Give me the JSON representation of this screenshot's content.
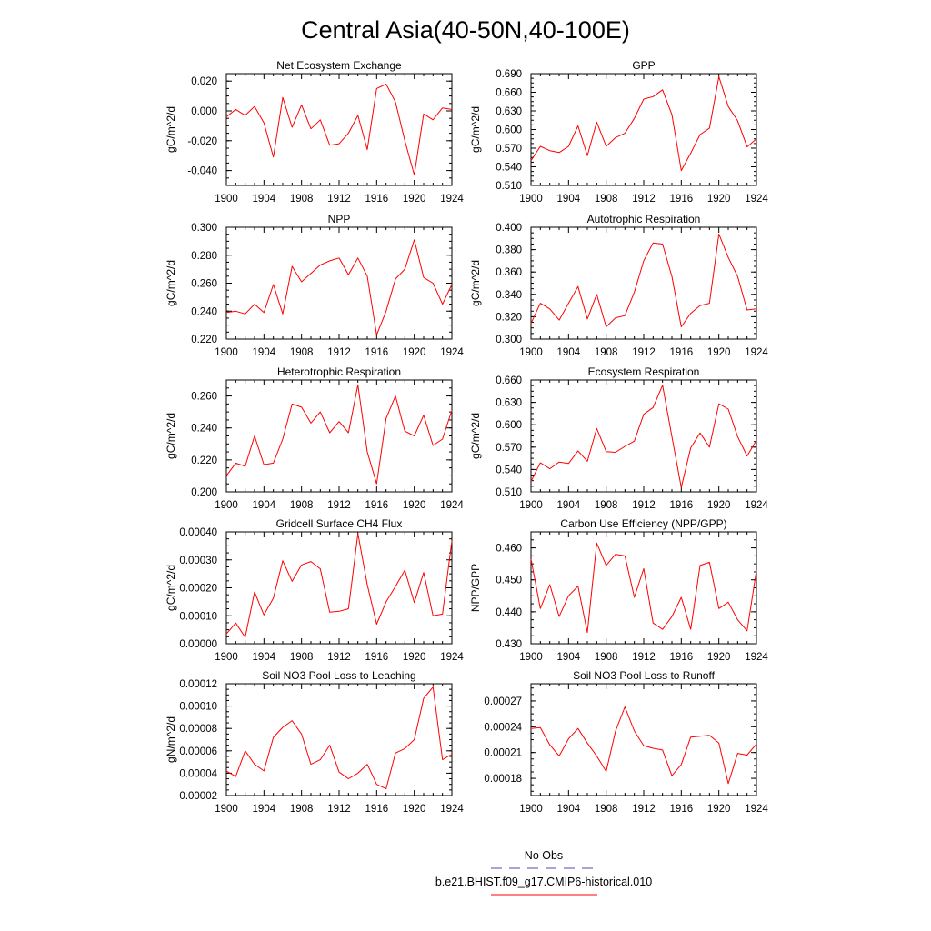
{
  "title": "Central Asia(40-50N,40-100E)",
  "colors": {
    "model": "#ff0000",
    "obs": "#4b4bb4",
    "axis": "#000000"
  },
  "legend": {
    "entries": [
      {
        "label": "No Obs",
        "style": "dashed",
        "color": "#4b4bb4"
      },
      {
        "label": "b.e21.BHIST.f09_g17.CMIP6-historical.010",
        "style": "solid",
        "color": "#ff0000"
      }
    ]
  },
  "chart_data": [
    {
      "type": "line",
      "title": "Net Ecosystem Exchange",
      "ylabel": "gC/m^2/d",
      "xlim": [
        1900,
        1924
      ],
      "ylim": [
        -0.05,
        0.025
      ],
      "xticks": [
        "1900",
        "1904",
        "1908",
        "1912",
        "1916",
        "1920",
        "1924"
      ],
      "yticks": [
        -0.04,
        -0.02,
        0.0,
        0.02
      ],
      "ytick_labels": [
        "-0.040",
        "-0.020",
        "0.000",
        "0.020"
      ],
      "series": [
        {
          "color": "#ff0000",
          "x": [
            1900,
            1901,
            1902,
            1903,
            1904,
            1905,
            1906,
            1907,
            1908,
            1909,
            1910,
            1911,
            1912,
            1913,
            1914,
            1915,
            1916,
            1917,
            1918,
            1919,
            1920,
            1921,
            1922,
            1923,
            1924
          ],
          "y": [
            -0.004,
            0.001,
            -0.003,
            0.003,
            -0.008,
            -0.031,
            0.009,
            -0.011,
            0.004,
            -0.012,
            -0.006,
            -0.023,
            -0.022,
            -0.015,
            -0.003,
            -0.026,
            0.015,
            0.018,
            0.006,
            -0.02,
            -0.043,
            -0.002,
            -0.006,
            0.002,
            0.001
          ]
        }
      ]
    },
    {
      "type": "line",
      "title": "GPP",
      "ylabel": "gC/m^2/d",
      "xlim": [
        1900,
        1924
      ],
      "ylim": [
        0.51,
        0.69
      ],
      "xticks": [
        "1900",
        "1904",
        "1908",
        "1912",
        "1916",
        "1920",
        "1924"
      ],
      "yticks": [
        0.51,
        0.54,
        0.57,
        0.6,
        0.63,
        0.66,
        0.69
      ],
      "ytick_labels": [
        "0.510",
        "0.540",
        "0.570",
        "0.600",
        "0.630",
        "0.660",
        "0.690"
      ],
      "series": [
        {
          "color": "#ff0000",
          "x": [
            1900,
            1901,
            1902,
            1903,
            1904,
            1905,
            1906,
            1907,
            1908,
            1909,
            1910,
            1911,
            1912,
            1913,
            1914,
            1915,
            1916,
            1917,
            1918,
            1919,
            1920,
            1921,
            1922,
            1923,
            1924
          ],
          "y": [
            0.55,
            0.573,
            0.566,
            0.563,
            0.573,
            0.606,
            0.558,
            0.612,
            0.573,
            0.587,
            0.594,
            0.618,
            0.649,
            0.653,
            0.664,
            0.624,
            0.534,
            0.562,
            0.592,
            0.602,
            0.685,
            0.637,
            0.614,
            0.572,
            0.585
          ]
        }
      ]
    },
    {
      "type": "line",
      "title": "NPP",
      "ylabel": "gC/m^2/d",
      "xlim": [
        1900,
        1924
      ],
      "ylim": [
        0.22,
        0.3
      ],
      "xticks": [
        "1900",
        "1904",
        "1908",
        "1912",
        "1916",
        "1920",
        "1924"
      ],
      "yticks": [
        0.22,
        0.24,
        0.26,
        0.28,
        0.3
      ],
      "ytick_labels": [
        "0.220",
        "0.240",
        "0.260",
        "0.280",
        "0.300"
      ],
      "series": [
        {
          "color": "#ff0000",
          "x": [
            1900,
            1901,
            1902,
            1903,
            1904,
            1905,
            1906,
            1907,
            1908,
            1909,
            1910,
            1911,
            1912,
            1913,
            1914,
            1915,
            1916,
            1917,
            1918,
            1919,
            1920,
            1921,
            1922,
            1923,
            1924
          ],
          "y": [
            0.239,
            0.24,
            0.238,
            0.245,
            0.239,
            0.259,
            0.238,
            0.272,
            0.261,
            0.267,
            0.273,
            0.276,
            0.278,
            0.266,
            0.278,
            0.265,
            0.223,
            0.24,
            0.263,
            0.27,
            0.291,
            0.264,
            0.26,
            0.245,
            0.259
          ]
        }
      ]
    },
    {
      "type": "line",
      "title": "Autotrophic Respiration",
      "ylabel": "gC/m^2/d",
      "xlim": [
        1900,
        1924
      ],
      "ylim": [
        0.3,
        0.4
      ],
      "xticks": [
        "1900",
        "1904",
        "1908",
        "1912",
        "1916",
        "1920",
        "1924"
      ],
      "yticks": [
        0.3,
        0.32,
        0.34,
        0.36,
        0.38,
        0.4
      ],
      "ytick_labels": [
        "0.300",
        "0.320",
        "0.340",
        "0.360",
        "0.380",
        "0.400"
      ],
      "series": [
        {
          "color": "#ff0000",
          "x": [
            1900,
            1901,
            1902,
            1903,
            1904,
            1905,
            1906,
            1907,
            1908,
            1909,
            1910,
            1911,
            1912,
            1913,
            1914,
            1915,
            1916,
            1917,
            1918,
            1919,
            1920,
            1921,
            1922,
            1923,
            1924
          ],
          "y": [
            0.314,
            0.332,
            0.327,
            0.317,
            0.332,
            0.347,
            0.318,
            0.34,
            0.311,
            0.319,
            0.321,
            0.342,
            0.37,
            0.386,
            0.385,
            0.356,
            0.311,
            0.323,
            0.33,
            0.332,
            0.394,
            0.373,
            0.356,
            0.326,
            0.327
          ]
        }
      ]
    },
    {
      "type": "line",
      "title": "Heterotrophic Respiration",
      "ylabel": "gC/m^2/d",
      "xlim": [
        1900,
        1924
      ],
      "ylim": [
        0.2,
        0.27
      ],
      "xticks": [
        "1900",
        "1904",
        "1908",
        "1912",
        "1916",
        "1920",
        "1924"
      ],
      "yticks": [
        0.2,
        0.22,
        0.24,
        0.26
      ],
      "ytick_labels": [
        "0.200",
        "0.220",
        "0.240",
        "0.260"
      ],
      "series": [
        {
          "color": "#ff0000",
          "x": [
            1900,
            1901,
            1902,
            1903,
            1904,
            1905,
            1906,
            1907,
            1908,
            1909,
            1910,
            1911,
            1912,
            1913,
            1914,
            1915,
            1916,
            1917,
            1918,
            1919,
            1920,
            1921,
            1922,
            1923,
            1924
          ],
          "y": [
            0.21,
            0.218,
            0.216,
            0.235,
            0.217,
            0.218,
            0.233,
            0.255,
            0.253,
            0.243,
            0.25,
            0.237,
            0.244,
            0.237,
            0.267,
            0.225,
            0.205,
            0.246,
            0.26,
            0.238,
            0.235,
            0.248,
            0.229,
            0.233,
            0.251
          ]
        }
      ]
    },
    {
      "type": "line",
      "title": "Ecosystem Respiration",
      "ylabel": "gC/m^2/d",
      "xlim": [
        1900,
        1924
      ],
      "ylim": [
        0.51,
        0.66
      ],
      "xticks": [
        "1900",
        "1904",
        "1908",
        "1912",
        "1916",
        "1920",
        "1924"
      ],
      "yticks": [
        0.51,
        0.54,
        0.57,
        0.6,
        0.63,
        0.66
      ],
      "ytick_labels": [
        "0.510",
        "0.540",
        "0.570",
        "0.600",
        "0.630",
        "0.660"
      ],
      "series": [
        {
          "color": "#ff0000",
          "x": [
            1900,
            1901,
            1902,
            1903,
            1904,
            1905,
            1906,
            1907,
            1908,
            1909,
            1910,
            1911,
            1912,
            1913,
            1914,
            1915,
            1916,
            1917,
            1918,
            1919,
            1920,
            1921,
            1922,
            1923,
            1924
          ],
          "y": [
            0.524,
            0.549,
            0.541,
            0.55,
            0.548,
            0.565,
            0.551,
            0.595,
            0.564,
            0.563,
            0.571,
            0.578,
            0.614,
            0.623,
            0.653,
            0.584,
            0.516,
            0.569,
            0.589,
            0.57,
            0.628,
            0.621,
            0.584,
            0.558,
            0.579
          ]
        }
      ]
    },
    {
      "type": "line",
      "title": "Gridcell Surface CH4 Flux",
      "ylabel": "gC/m^2/d",
      "xlim": [
        1900,
        1924
      ],
      "ylim": [
        0.0,
        0.0004
      ],
      "xticks": [
        "1900",
        "1904",
        "1908",
        "1912",
        "1916",
        "1920",
        "1924"
      ],
      "yticks": [
        0.0,
        0.0001,
        0.0002,
        0.0003,
        0.0004
      ],
      "ytick_labels": [
        "0.00000",
        "0.00010",
        "0.00020",
        "0.00030",
        "0.00040"
      ],
      "series": [
        {
          "color": "#ff0000",
          "x": [
            1900,
            1901,
            1902,
            1903,
            1904,
            1905,
            1906,
            1907,
            1908,
            1909,
            1910,
            1911,
            1912,
            1913,
            1914,
            1915,
            1916,
            1917,
            1918,
            1919,
            1920,
            1921,
            1922,
            1923,
            1924
          ],
          "y": [
            3.5e-05,
            7.4e-05,
            2.3e-05,
            0.000185,
            0.000103,
            0.000163,
            0.000297,
            0.000223,
            0.000282,
            0.000294,
            0.000268,
            0.000113,
            0.000116,
            0.000125,
            0.000394,
            0.000211,
            7e-05,
            0.00015,
            0.000205,
            0.000263,
            0.000147,
            0.000255,
            0.0001,
            0.000106,
            0.000368
          ]
        }
      ]
    },
    {
      "type": "line",
      "title": "Carbon Use Efficiency (NPP/GPP)",
      "ylabel": "NPP/GPP",
      "xlim": [
        1900,
        1924
      ],
      "ylim": [
        0.43,
        0.465
      ],
      "xticks": [
        "1900",
        "1904",
        "1908",
        "1912",
        "1916",
        "1920",
        "1924"
      ],
      "yticks": [
        0.43,
        0.44,
        0.45,
        0.46
      ],
      "ytick_labels": [
        "0.430",
        "0.440",
        "0.450",
        "0.460"
      ],
      "series": [
        {
          "color": "#ff0000",
          "x": [
            1900,
            1901,
            1902,
            1903,
            1904,
            1905,
            1906,
            1907,
            1908,
            1909,
            1910,
            1911,
            1912,
            1913,
            1914,
            1915,
            1916,
            1917,
            1918,
            1919,
            1920,
            1921,
            1922,
            1923,
            1924
          ],
          "y": [
            0.4565,
            0.441,
            0.4485,
            0.4385,
            0.445,
            0.448,
            0.4335,
            0.4615,
            0.4545,
            0.458,
            0.4575,
            0.4445,
            0.4535,
            0.4365,
            0.4345,
            0.4385,
            0.4445,
            0.4345,
            0.4545,
            0.4555,
            0.441,
            0.443,
            0.4375,
            0.434,
            0.453
          ]
        }
      ]
    },
    {
      "type": "line",
      "title": "Soil NO3 Pool Loss to Leaching",
      "ylabel": "gN/m^2/d",
      "xlim": [
        1900,
        1924
      ],
      "ylim": [
        2e-05,
        0.00012
      ],
      "xticks": [
        "1900",
        "1904",
        "1908",
        "1912",
        "1916",
        "1920",
        "1924"
      ],
      "yticks": [
        2e-05,
        4e-05,
        6e-05,
        8e-05,
        0.0001,
        0.00012
      ],
      "ytick_labels": [
        "0.00002",
        "0.00004",
        "0.00006",
        "0.00008",
        "0.00010",
        "0.00012"
      ],
      "series": [
        {
          "color": "#ff0000",
          "x": [
            1900,
            1901,
            1902,
            1903,
            1904,
            1905,
            1906,
            1907,
            1908,
            1909,
            1910,
            1911,
            1912,
            1913,
            1914,
            1915,
            1916,
            1917,
            1918,
            1919,
            1920,
            1921,
            1922,
            1923,
            1924
          ],
          "y": [
            4.2e-05,
            3.7e-05,
            6e-05,
            4.8e-05,
            4.2e-05,
            7.2e-05,
            8.1e-05,
            8.7e-05,
            7.5e-05,
            4.8e-05,
            5.2e-05,
            6.5e-05,
            4.1e-05,
            3.5e-05,
            4e-05,
            4.8e-05,
            3e-05,
            2.6e-05,
            5.8e-05,
            6.2e-05,
            7e-05,
            0.000107,
            0.000117,
            5.2e-05,
            5.7e-05
          ]
        }
      ]
    },
    {
      "type": "line",
      "title": "Soil NO3 Pool Loss to Runoff",
      "ylabel": "",
      "xlim": [
        1900,
        1924
      ],
      "ylim": [
        0.00016,
        0.00029
      ],
      "xticks": [
        "1900",
        "1904",
        "1908",
        "1912",
        "1916",
        "1920",
        "1924"
      ],
      "yticks": [
        0.00018,
        0.00021,
        0.00024,
        0.00027
      ],
      "ytick_labels": [
        "0.00018",
        "0.00021",
        "0.00024",
        "0.00027"
      ],
      "series": [
        {
          "color": "#ff0000",
          "x": [
            1900,
            1901,
            1902,
            1903,
            1904,
            1905,
            1906,
            1907,
            1908,
            1909,
            1910,
            1911,
            1912,
            1913,
            1914,
            1915,
            1916,
            1917,
            1918,
            1919,
            1920,
            1921,
            1922,
            1923,
            1924
          ],
          "y": [
            0.000238,
            0.000239,
            0.000219,
            0.000206,
            0.000226,
            0.000238,
            0.000221,
            0.000206,
            0.000188,
            0.000235,
            0.000263,
            0.000235,
            0.000218,
            0.000215,
            0.000213,
            0.000183,
            0.000196,
            0.000228,
            0.000229,
            0.00023,
            0.000221,
            0.000174,
            0.000209,
            0.000207,
            0.00022
          ]
        }
      ]
    }
  ]
}
